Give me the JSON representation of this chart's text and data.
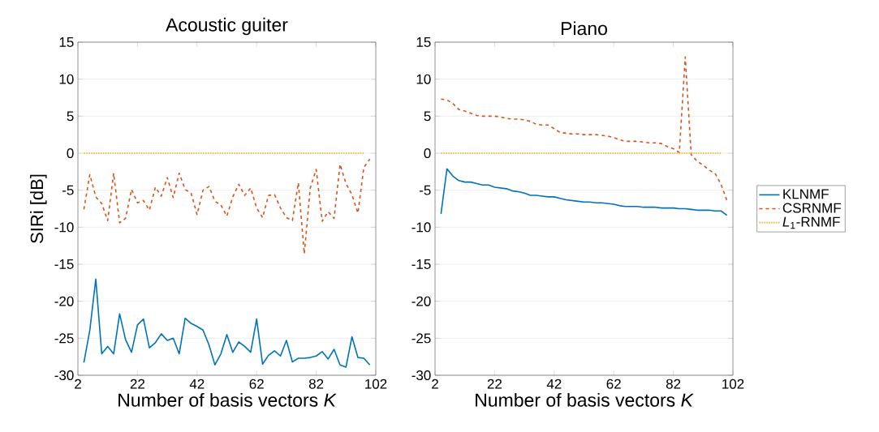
{
  "chart_data": [
    {
      "type": "line",
      "title": "Acoustic guiter",
      "xlabel": "Number of basis vectors *K*",
      "ylabel": "SIRi [dB]",
      "xlim": [
        2,
        102
      ],
      "ylim": [
        -30,
        15
      ],
      "xticks": [
        2,
        22,
        42,
        62,
        82,
        102
      ],
      "yticks": [
        -30,
        -25,
        -20,
        -15,
        -10,
        -5,
        0,
        5,
        10,
        15
      ],
      "grid": "y",
      "legend": false,
      "marker": "none",
      "x": [
        4,
        6,
        8,
        10,
        12,
        14,
        16,
        18,
        20,
        22,
        24,
        26,
        28,
        30,
        32,
        34,
        36,
        38,
        40,
        42,
        44,
        46,
        48,
        50,
        52,
        54,
        56,
        58,
        60,
        62,
        64,
        66,
        68,
        70,
        72,
        74,
        76,
        78,
        80,
        82,
        84,
        86,
        88,
        90,
        92,
        94,
        96,
        98,
        100
      ],
      "series": [
        {
          "color": "#0072bd",
          "line_style": "solid",
          "values": [
            -28.3,
            -23.9,
            -17.0,
            -27.1,
            -26.1,
            -27.1,
            -21.7,
            -25.2,
            -26.9,
            -23.2,
            -22.4,
            -26.3,
            -25.6,
            -24.4,
            -25.3,
            -25.0,
            -27.1,
            -22.3,
            -23.0,
            -23.4,
            -23.9,
            -25.9,
            -28.6,
            -27.1,
            -24.5,
            -26.9,
            -25.5,
            -26.1,
            -26.9,
            -22.4,
            -28.5,
            -27.3,
            -26.7,
            -27.4,
            -25.3,
            -28.2,
            -27.7,
            -27.7,
            -27.6,
            -27.4,
            -26.8,
            -27.8,
            -26.5,
            -28.6,
            -28.9,
            -24.8,
            -27.6,
            -27.7,
            -28.6
          ]
        },
        {
          "color": "#d95319",
          "line_style": "dashed",
          "values": [
            -7.6,
            -2.9,
            -5.9,
            -6.8,
            -9.1,
            -2.7,
            -9.4,
            -8.8,
            -4.9,
            -6.7,
            -6.4,
            -7.7,
            -4.6,
            -5.8,
            -3.3,
            -6.0,
            -2.7,
            -4.9,
            -5.4,
            -8.3,
            -5.0,
            -4.5,
            -6.5,
            -7.0,
            -8.5,
            -5.9,
            -4.2,
            -5.7,
            -4.7,
            -7.4,
            -8.7,
            -5.7,
            -5.6,
            -7.4,
            -8.7,
            -9.1,
            -4.0,
            -13.6,
            -4.7,
            -2.2,
            -9.2,
            -7.9,
            -8.8,
            -1.5,
            -4.1,
            -5.6,
            -8.1,
            -1.9,
            -0.8
          ]
        },
        {
          "color": "#edb120",
          "line_style": "dotted",
          "values": [
            0,
            0,
            0,
            0,
            0,
            0,
            0,
            0,
            0,
            0,
            0,
            0,
            0,
            0,
            0,
            0,
            0,
            0,
            0,
            0,
            0,
            0,
            0,
            0,
            0,
            0,
            0,
            0,
            0,
            0,
            0,
            0,
            0,
            0,
            0,
            0,
            0,
            0,
            0,
            0,
            0,
            0,
            0,
            0,
            0,
            0,
            0,
            0,
            null
          ]
        }
      ]
    },
    {
      "type": "line",
      "title": "Piano",
      "xlabel": "Number of basis vectors *K*",
      "xlim": [
        2,
        102
      ],
      "ylim": [
        -30,
        15
      ],
      "xticks": [
        2,
        22,
        42,
        62,
        82,
        102
      ],
      "yticks": [
        -30,
        -25,
        -20,
        -15,
        -10,
        -5,
        0,
        5,
        10,
        15
      ],
      "grid": "y",
      "legend": "right",
      "marker": "none",
      "x": [
        4,
        6,
        8,
        10,
        12,
        14,
        16,
        18,
        20,
        22,
        24,
        26,
        28,
        30,
        32,
        34,
        36,
        38,
        40,
        42,
        44,
        46,
        48,
        50,
        52,
        54,
        56,
        58,
        60,
        62,
        64,
        66,
        68,
        70,
        72,
        74,
        76,
        78,
        80,
        82,
        84,
        86,
        88,
        90,
        92,
        94,
        96,
        98,
        100
      ],
      "series": [
        {
          "name": "KLNMF",
          "color": "#0072bd",
          "line_style": "solid",
          "values": [
            -8.2,
            -2.1,
            -3.1,
            -3.7,
            -3.9,
            -3.9,
            -4.1,
            -4.3,
            -4.3,
            -4.6,
            -4.7,
            -4.8,
            -5.1,
            -5.2,
            -5.4,
            -5.7,
            -5.7,
            -5.8,
            -5.9,
            -5.9,
            -6.1,
            -6.3,
            -6.4,
            -6.5,
            -6.6,
            -6.6,
            -6.7,
            -6.7,
            -6.8,
            -6.9,
            -7.1,
            -7.2,
            -7.2,
            -7.2,
            -7.3,
            -7.3,
            -7.3,
            -7.4,
            -7.4,
            -7.4,
            -7.5,
            -7.5,
            -7.6,
            -7.7,
            -7.7,
            -7.7,
            -7.8,
            -7.8,
            -8.4
          ]
        },
        {
          "name": "CSRNMF",
          "color": "#d95319",
          "line_style": "dashed",
          "values": [
            7.3,
            7.2,
            6.7,
            5.9,
            5.7,
            5.4,
            5.1,
            5.0,
            5.0,
            5.0,
            4.9,
            4.7,
            4.6,
            4.6,
            4.5,
            4.3,
            3.9,
            3.8,
            3.8,
            3.3,
            2.8,
            2.7,
            2.6,
            2.6,
            2.5,
            2.5,
            2.5,
            2.4,
            2.3,
            2.1,
            1.8,
            1.6,
            1.6,
            1.6,
            1.5,
            1.4,
            1.4,
            1.3,
            0.9,
            0.6,
            0.1,
            13.0,
            -0.2,
            -1.1,
            -1.6,
            -2.3,
            -2.7,
            -4.2,
            -6.4
          ]
        },
        {
          "name": "*L*$_{1}$-RNMF",
          "color": "#edb120",
          "line_style": "dotted",
          "values": [
            0,
            0,
            0,
            0,
            0,
            0,
            0,
            0,
            0,
            0,
            0,
            0,
            0,
            0,
            0,
            0,
            0,
            0,
            0,
            0,
            0,
            0,
            0,
            0,
            0,
            0,
            0,
            0,
            0,
            0,
            0,
            0,
            0,
            0,
            0,
            0,
            0,
            0,
            0,
            0,
            0,
            0,
            0,
            0,
            0,
            0,
            0,
            0,
            null
          ]
        }
      ]
    }
  ]
}
